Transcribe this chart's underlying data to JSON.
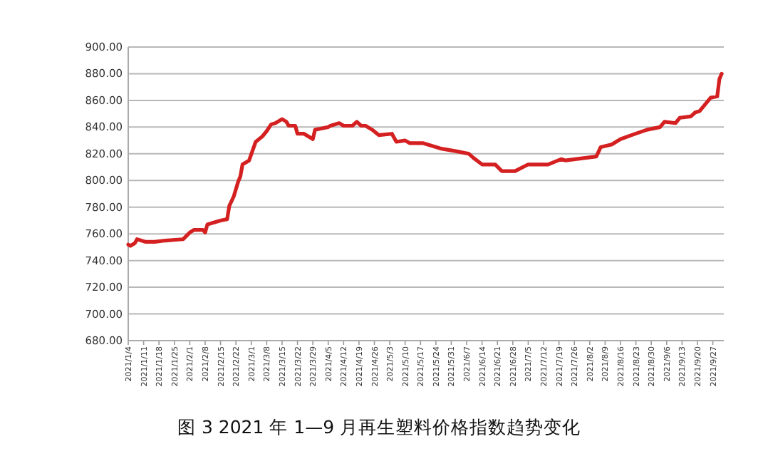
{
  "chart_data": {
    "type": "line",
    "x": [
      "2021-01-04",
      "2021-01-05",
      "2021-01-07",
      "2021-01-08",
      "2021-01-12",
      "2021-01-16",
      "2021-01-21",
      "2021-01-29",
      "2021-02-01",
      "2021-02-03",
      "2021-02-07",
      "2021-02-08",
      "2021-02-09",
      "2021-02-15",
      "2021-02-18",
      "2021-02-19",
      "2021-02-21",
      "2021-02-23",
      "2021-02-24",
      "2021-02-25",
      "2021-02-28",
      "2021-03-03",
      "2021-03-06",
      "2021-03-08",
      "2021-03-10",
      "2021-03-12",
      "2021-03-15",
      "2021-03-17",
      "2021-03-18",
      "2021-03-21",
      "2021-03-22",
      "2021-03-25",
      "2021-03-29",
      "2021-03-30",
      "2021-04-02",
      "2021-04-05",
      "2021-04-06",
      "2021-04-10",
      "2021-04-12",
      "2021-04-16",
      "2021-04-18",
      "2021-04-20",
      "2021-04-22",
      "2021-04-25",
      "2021-04-28",
      "2021-05-04",
      "2021-05-06",
      "2021-05-10",
      "2021-05-12",
      "2021-05-18",
      "2021-05-26",
      "2021-06-02",
      "2021-06-08",
      "2021-06-10",
      "2021-06-14",
      "2021-06-20",
      "2021-06-23",
      "2021-06-29",
      "2021-07-05",
      "2021-07-14",
      "2021-07-20",
      "2021-07-22",
      "2021-08-05",
      "2021-08-07",
      "2021-08-12",
      "2021-08-16",
      "2021-08-21",
      "2021-08-28",
      "2021-09-03",
      "2021-09-05",
      "2021-09-10",
      "2021-09-12",
      "2021-09-17",
      "2021-09-19",
      "2021-09-21",
      "2021-09-26",
      "2021-09-29",
      "2021-09-30",
      "2021-10-01"
    ],
    "series": [
      {
        "color": "#d42020",
        "values": [
          752,
          751,
          753,
          756,
          754,
          754,
          755,
          756,
          761,
          763,
          763,
          761,
          767,
          770,
          771,
          781,
          788,
          799,
          803,
          812,
          815,
          829,
          833,
          837,
          842,
          843,
          846,
          844,
          841,
          841,
          835,
          835,
          831,
          838,
          839,
          840,
          841,
          843,
          841,
          841,
          844,
          841,
          841,
          838,
          834,
          835,
          829,
          830,
          828,
          828,
          824,
          822,
          820,
          817,
          812,
          812,
          807,
          807,
          812,
          812,
          816,
          815,
          818,
          825,
          827,
          831,
          834,
          838,
          840,
          844,
          843,
          847,
          848,
          851,
          852,
          862,
          863,
          876,
          880
        ]
      }
    ],
    "xlim": [
      "2021-01-04",
      "2021-10-02"
    ],
    "xticks": [
      {
        "value": "2021-01-04",
        "label": "2021/1/4"
      },
      {
        "value": "2021-01-11",
        "label": "2021/1/11"
      },
      {
        "value": "2021-01-18",
        "label": "2021/1/18"
      },
      {
        "value": "2021-01-25",
        "label": "2021/1/25"
      },
      {
        "value": "2021-02-01",
        "label": "2021/2/1"
      },
      {
        "value": "2021-02-08",
        "label": "2021/2/8"
      },
      {
        "value": "2021-02-15",
        "label": "2021/2/15"
      },
      {
        "value": "2021-02-22",
        "label": "2021/2/22"
      },
      {
        "value": "2021-03-01",
        "label": "2021/3/1"
      },
      {
        "value": "2021-03-08",
        "label": "2021/3/8"
      },
      {
        "value": "2021-03-15",
        "label": "2021/3/15"
      },
      {
        "value": "2021-03-22",
        "label": "2021/3/22"
      },
      {
        "value": "2021-03-29",
        "label": "2021/3/29"
      },
      {
        "value": "2021-04-05",
        "label": "2021/4/5"
      },
      {
        "value": "2021-04-12",
        "label": "2021/4/12"
      },
      {
        "value": "2021-04-19",
        "label": "2021/4/19"
      },
      {
        "value": "2021-04-26",
        "label": "2021/4/26"
      },
      {
        "value": "2021-05-03",
        "label": "2021/5/3"
      },
      {
        "value": "2021-05-10",
        "label": "2021/5/10"
      },
      {
        "value": "2021-05-17",
        "label": "2021/5/17"
      },
      {
        "value": "2021-05-24",
        "label": "2021/5/24"
      },
      {
        "value": "2021-05-31",
        "label": "2021/5/31"
      },
      {
        "value": "2021-06-07",
        "label": "2021/6/7"
      },
      {
        "value": "2021-06-14",
        "label": "2021/6/14"
      },
      {
        "value": "2021-06-21",
        "label": "2021/6/21"
      },
      {
        "value": "2021-06-28",
        "label": "2021/6/28"
      },
      {
        "value": "2021-07-05",
        "label": "2021/7/5"
      },
      {
        "value": "2021-07-12",
        "label": "2021/7/12"
      },
      {
        "value": "2021-07-19",
        "label": "2021/7/19"
      },
      {
        "value": "2021-07-26",
        "label": "2021/7/26"
      },
      {
        "value": "2021-08-02",
        "label": "2021/8/2"
      },
      {
        "value": "2021-08-09",
        "label": "2021/8/9"
      },
      {
        "value": "2021-08-16",
        "label": "2021/8/16"
      },
      {
        "value": "2021-08-23",
        "label": "2021/8/23"
      },
      {
        "value": "2021-08-30",
        "label": "2021/8/30"
      },
      {
        "value": "2021-09-06",
        "label": "2021/9/6"
      },
      {
        "value": "2021-09-13",
        "label": "2021/9/13"
      },
      {
        "value": "2021-09-20",
        "label": "2021/9/20"
      },
      {
        "value": "2021-09-27",
        "label": "2021/9/27"
      }
    ],
    "ylim": [
      680,
      900
    ],
    "yticks": [
      {
        "value": 680,
        "label": "680.00"
      },
      {
        "value": 700,
        "label": "700.00"
      },
      {
        "value": 720,
        "label": "720.00"
      },
      {
        "value": 740,
        "label": "740.00"
      },
      {
        "value": 760,
        "label": "760.00"
      },
      {
        "value": 780,
        "label": "780.00"
      },
      {
        "value": 800,
        "label": "800.00"
      },
      {
        "value": 820,
        "label": "820.00"
      },
      {
        "value": 840,
        "label": "840.00"
      },
      {
        "value": 860,
        "label": "860.00"
      },
      {
        "value": 880,
        "label": "880.00"
      },
      {
        "value": 900,
        "label": "900.00"
      }
    ],
    "grid": "y",
    "annotations": [
      "图 3  2021 年 1—9 月再生塑料价格指数趋势变化"
    ]
  }
}
